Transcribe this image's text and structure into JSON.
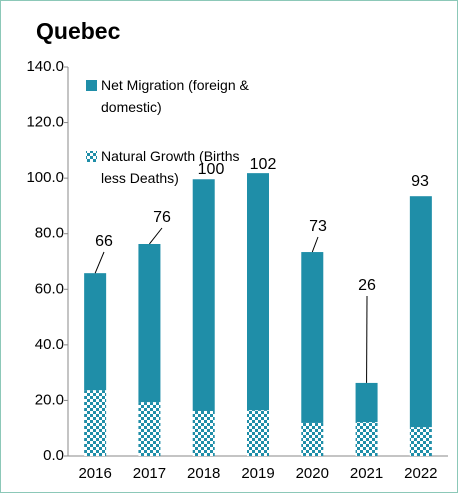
{
  "chart_data": {
    "type": "stacked_bar",
    "title": "Quebec",
    "categories": [
      "2016",
      "2017",
      "2018",
      "2019",
      "2020",
      "2021",
      "2022"
    ],
    "series": [
      {
        "name": "Natural Growth (Births less Deaths)",
        "color": "#1f8ea8",
        "pattern": "checker",
        "values": [
          23.7,
          19.4,
          16.2,
          16.5,
          11.9,
          12.2,
          10.4
        ]
      },
      {
        "name": "Net Migration (foreign & domestic)",
        "color": "#1f8ea8",
        "values": [
          42.1,
          56.9,
          83.4,
          85.3,
          61.5,
          14.1,
          83.1
        ]
      }
    ],
    "totals": [
      66,
      76,
      100,
      102,
      73,
      26,
      93
    ],
    "ylim": [
      0,
      140
    ],
    "yticks": [
      {
        "value": 0,
        "label": "0.0"
      },
      {
        "value": 20,
        "label": "20.0"
      },
      {
        "value": 40,
        "label": "40.0"
      },
      {
        "value": 60,
        "label": "60.0"
      },
      {
        "value": 80,
        "label": "80.0"
      },
      {
        "value": 100,
        "label": "100.0"
      },
      {
        "value": 120,
        "label": "120.0"
      },
      {
        "value": 140,
        "label": "140.0"
      }
    ],
    "grid": false,
    "legend": "upper left"
  }
}
